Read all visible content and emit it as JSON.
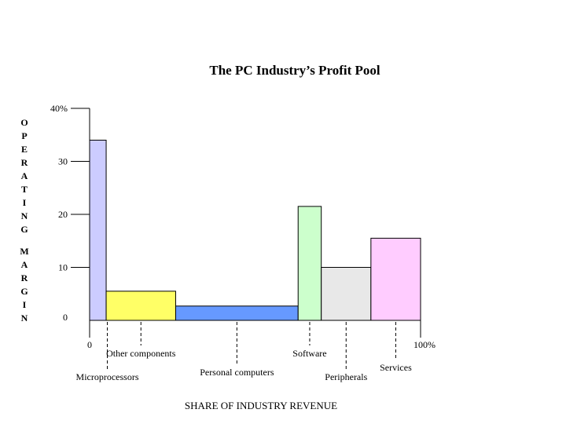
{
  "chart_data": {
    "type": "bar",
    "variant": "variable-width (profit pool)",
    "title": "The PC Industry’s Profit Pool",
    "xlabel": "SHARE OF INDUSTRY REVENUE",
    "ylabel": "OPERATING MARGIN",
    "ylim": [
      0,
      40
    ],
    "xlim": [
      0,
      100
    ],
    "yticks": [
      "0",
      "10",
      "20",
      "30",
      "40%"
    ],
    "xticks": [
      "0",
      "100%"
    ],
    "grid": false,
    "legend": "none",
    "segments": [
      {
        "category": "Microprocessors",
        "share": 5,
        "margin": 34,
        "color": "#ccccff"
      },
      {
        "category": "Other components",
        "share": 21,
        "margin": 5.5,
        "color": "#ffff66"
      },
      {
        "category": "Personal computers",
        "share": 37,
        "margin": 2.7,
        "color": "#6699ff"
      },
      {
        "category": "Software",
        "share": 7,
        "margin": 21.5,
        "color": "#ccffcc"
      },
      {
        "category": "Peripherals",
        "share": 15,
        "margin": 10,
        "color": "#e8e8e8"
      },
      {
        "category": "Services",
        "share": 15,
        "margin": 15.5,
        "color": "#ffccff"
      }
    ]
  }
}
